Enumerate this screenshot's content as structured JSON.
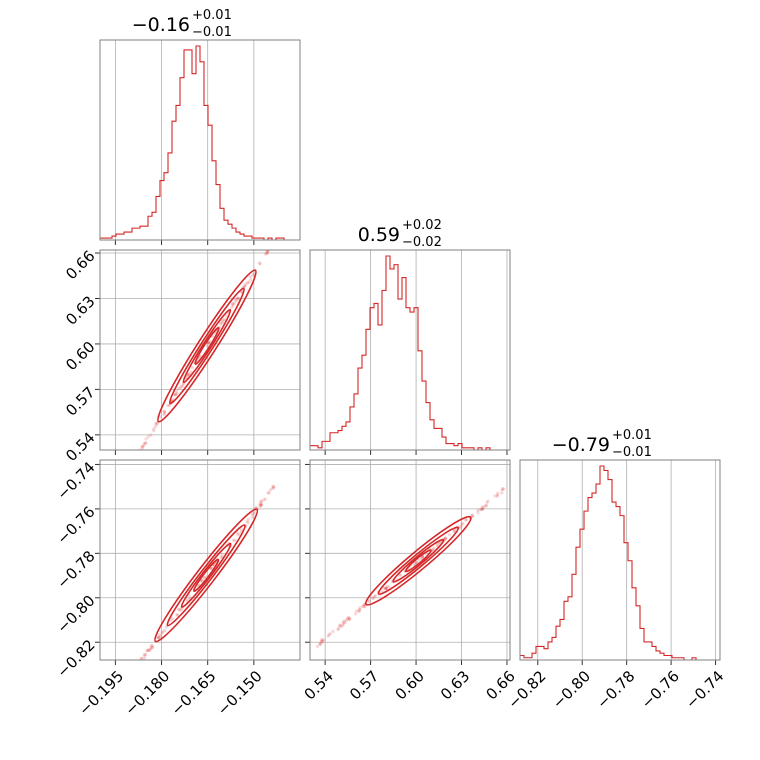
{
  "chart_data": {
    "type": "corner",
    "color": "#d62728",
    "grid": true,
    "parameters": [
      {
        "title": {
          "value": "−0.16",
          "upper": "+0.01",
          "lower": "−0.01"
        },
        "range": [
          -0.2,
          -0.135
        ],
        "ticks": [
          -0.195,
          -0.18,
          -0.165,
          -0.15
        ],
        "tick_labels": [
          "−0.195",
          "−0.180",
          "−0.165",
          "−0.150"
        ],
        "hist_edges_start": -0.2,
        "hist_edges_step": 0.0013,
        "hist_counts": [
          1,
          1,
          1,
          2,
          3,
          3,
          4,
          4,
          6,
          6,
          7,
          7,
          12,
          14,
          22,
          30,
          34,
          44,
          60,
          68,
          82,
          96,
          96,
          84,
          98,
          90,
          68,
          58,
          40,
          28,
          16,
          10,
          8,
          6,
          4,
          3,
          2,
          2,
          1,
          1,
          1,
          0,
          1,
          0,
          1,
          1,
          0,
          0,
          0,
          0
        ]
      },
      {
        "title": {
          "value": "0.59",
          "upper": "+0.02",
          "lower": "−0.02"
        },
        "range": [
          0.53,
          0.662
        ],
        "ticks": [
          0.54,
          0.57,
          0.6,
          0.63,
          0.66
        ],
        "tick_labels": [
          "0.54",
          "0.57",
          "0.60",
          "0.63",
          "0.66"
        ],
        "hist_edges_start": 0.53,
        "hist_edges_step": 0.00264,
        "hist_counts": [
          2,
          2,
          1,
          4,
          4,
          8,
          8,
          9,
          11,
          13,
          20,
          26,
          38,
          44,
          56,
          66,
          68,
          58,
          74,
          90,
          84,
          86,
          70,
          80,
          66,
          64,
          66,
          46,
          32,
          22,
          14,
          10,
          10,
          6,
          3,
          3,
          2,
          3,
          1,
          1,
          1,
          0,
          1,
          0,
          1,
          0,
          0,
          0,
          0,
          0
        ]
      },
      {
        "title": {
          "value": "−0.79",
          "upper": "+0.01",
          "lower": "−0.01"
        },
        "range": [
          -0.828,
          -0.738
        ],
        "ticks": [
          -0.82,
          -0.8,
          -0.78,
          -0.76,
          -0.74
        ],
        "tick_labels": [
          "−0.82",
          "−0.80",
          "−0.78",
          "−0.76",
          "−0.74"
        ],
        "hist_edges_start": -0.828,
        "hist_edges_step": 0.0018,
        "hist_counts": [
          2,
          1,
          1,
          3,
          6,
          6,
          5,
          8,
          10,
          15,
          18,
          26,
          28,
          38,
          50,
          58,
          66,
          72,
          74,
          78,
          86,
          84,
          80,
          70,
          68,
          64,
          52,
          44,
          32,
          24,
          14,
          8,
          8,
          6,
          4,
          3,
          2,
          2,
          1,
          1,
          1,
          0,
          0,
          1,
          0,
          0,
          0,
          0,
          0,
          0
        ]
      }
    ],
    "pairs": [
      {
        "x": 0,
        "y": 1,
        "slope": 3.17,
        "intercept": 1.1225,
        "x_span": [
          -0.181,
          -0.1495
        ],
        "x_scatter": [
          -0.198,
          -0.145
        ],
        "width": 0.0023
      },
      {
        "x": 0,
        "y": 2,
        "slope": 1.8,
        "intercept": -0.492,
        "x_span": [
          -0.182,
          -0.149
        ],
        "x_scatter": [
          -0.199,
          -0.1435
        ],
        "width": 0.0021
      },
      {
        "x": 1,
        "y": 2,
        "slope": 0.568,
        "intercept": -1.125,
        "x_span": [
          0.567,
          0.636
        ],
        "x_scatter": [
          0.534,
          0.66
        ],
        "width": 0.0015
      }
    ]
  }
}
